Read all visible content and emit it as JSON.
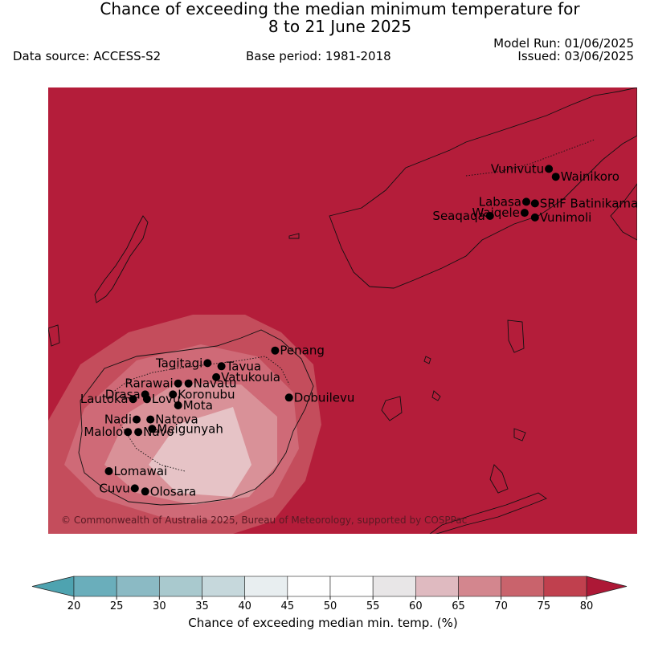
{
  "title_line1": "Chance of exceeding the median minimum temperature for",
  "title_line2": "8 to 21 June 2025",
  "data_source": "Data source: ACCESS-S2",
  "base_period": "Base period: 1981-2018",
  "model_run": "Model Run: 01/06/2025",
  "issued": "Issued: 03/06/2025",
  "copyright": "© Commonwealth of Australia 2025, Bureau of Meteorology, supported by COSPPac",
  "colors": {
    "background": "#b41d3a",
    "level_75_80": "#c44d5c",
    "level_70_75": "#cf6a77",
    "level_65_70": "#d99198",
    "level_60_65": "#e6c3c6",
    "coast": "#111111"
  },
  "places": [
    {
      "name": "Vunivutu",
      "x_deg": 179.84,
      "y_deg": -16.22,
      "label_side": "left"
    },
    {
      "name": "Wainikoro",
      "x_deg": 179.88,
      "y_deg": -16.27,
      "label_side": "right"
    },
    {
      "name": "Labasa",
      "x_deg": 179.71,
      "y_deg": -16.43,
      "label_side": "left"
    },
    {
      "name": "SRIF Batinikama",
      "x_deg": 179.76,
      "y_deg": -16.44,
      "label_side": "right"
    },
    {
      "name": "Waiqele",
      "x_deg": 179.7,
      "y_deg": -16.5,
      "label_side": "left"
    },
    {
      "name": "Vunimoli",
      "x_deg": 179.76,
      "y_deg": -16.53,
      "label_side": "right"
    },
    {
      "name": "Seaqaqa",
      "x_deg": 179.5,
      "y_deg": -16.52,
      "label_side": "left"
    },
    {
      "name": "Penang",
      "x_deg": 178.26,
      "y_deg": -17.38,
      "label_side": "right"
    },
    {
      "name": "Tagitagi",
      "x_deg": 177.87,
      "y_deg": -17.46,
      "label_side": "left"
    },
    {
      "name": "Tavua",
      "x_deg": 177.95,
      "y_deg": -17.48,
      "label_side": "right"
    },
    {
      "name": "Vatukoula",
      "x_deg": 177.92,
      "y_deg": -17.55,
      "label_side": "right"
    },
    {
      "name": "Rarawai",
      "x_deg": 177.7,
      "y_deg": -17.59,
      "label_side": "left"
    },
    {
      "name": "Navatu",
      "x_deg": 177.76,
      "y_deg": -17.59,
      "label_side": "right"
    },
    {
      "name": "Dobuilevu",
      "x_deg": 178.34,
      "y_deg": -17.68,
      "label_side": "right"
    },
    {
      "name": "Drasa",
      "x_deg": 177.51,
      "y_deg": -17.66,
      "label_side": "left"
    },
    {
      "name": "Koronubu",
      "x_deg": 177.67,
      "y_deg": -17.66,
      "label_side": "right"
    },
    {
      "name": "Lautoka",
      "x_deg": 177.44,
      "y_deg": -17.69,
      "label_side": "left"
    },
    {
      "name": "Lovu",
      "x_deg": 177.52,
      "y_deg": -17.69,
      "label_side": "right"
    },
    {
      "name": "Mota",
      "x_deg": 177.7,
      "y_deg": -17.73,
      "label_side": "right"
    },
    {
      "name": "Natova",
      "x_deg": 177.54,
      "y_deg": -17.82,
      "label_side": "right"
    },
    {
      "name": "Nadi",
      "x_deg": 177.46,
      "y_deg": -17.82,
      "label_side": "left"
    },
    {
      "name": "Meigunyah",
      "x_deg": 177.55,
      "y_deg": -17.88,
      "label_side": "right"
    },
    {
      "name": "Malolo",
      "x_deg": 177.41,
      "y_deg": -17.9,
      "label_side": "left"
    },
    {
      "name": "Navo",
      "x_deg": 177.47,
      "y_deg": -17.9,
      "label_side": "right"
    },
    {
      "name": "Lomawai",
      "x_deg": 177.3,
      "y_deg": -18.15,
      "label_side": "right"
    },
    {
      "name": "Cuvu",
      "x_deg": 177.45,
      "y_deg": -18.26,
      "label_side": "left"
    },
    {
      "name": "Olosara",
      "x_deg": 177.51,
      "y_deg": -18.28,
      "label_side": "right"
    }
  ],
  "colorbar": {
    "label": "Chance of exceeding median min. temp. (%)",
    "ticks": [
      "20",
      "25",
      "30",
      "35",
      "40",
      "45",
      "50",
      "55",
      "60",
      "65",
      "70",
      "75",
      "80"
    ],
    "colors": [
      "#6aaebb",
      "#8bbac4",
      "#a9c9ce",
      "#c6d8dc",
      "#e8eef0",
      "#ffffff",
      "#ffffff",
      "#e8e6e7",
      "#dfbac0",
      "#d3868e",
      "#c9636c",
      "#c0404e"
    ],
    "extend_low_color": "#4ea3b0",
    "extend_high_color": "#ad1836"
  }
}
